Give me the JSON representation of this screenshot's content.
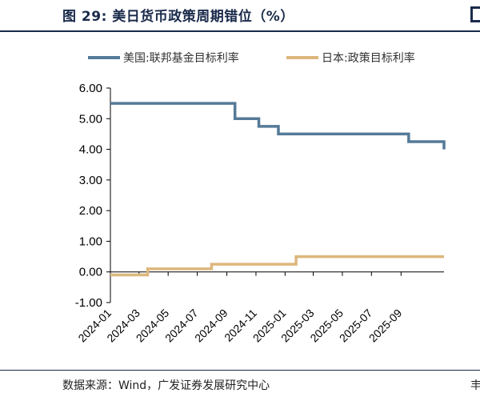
{
  "title": "图 29:  美日货币政策周期错位（%）",
  "source": "数据来源：Wind，广发证券发展研究中心",
  "source_right": "丰",
  "colors": {
    "us": "#557a97",
    "jp": "#ddb77d",
    "axis": "#000000",
    "title": "#1a2a4a"
  },
  "chart_data": {
    "type": "line",
    "title": "美日货币政策周期错位（%）",
    "xlabel": "",
    "ylabel": "",
    "ylim": [
      -1.0,
      6.0
    ],
    "yticks": [
      "6.00",
      "5.00",
      "4.00",
      "3.00",
      "2.00",
      "1.00",
      "0.00",
      "-1.00"
    ],
    "xticks": [
      "2024-01",
      "2024-03",
      "2024-05",
      "2024-07",
      "2024-09",
      "2024-11",
      "2025-01",
      "2025-03",
      "2025-05",
      "2025-07",
      "2025-09"
    ],
    "xrange": [
      "2024-01-01",
      "2025-11-30"
    ],
    "grid": false,
    "legend_position": "top",
    "series": [
      {
        "name": "美国:联邦基金目标利率",
        "step": true,
        "points": [
          [
            "2024-01-01",
            5.5
          ],
          [
            "2024-09-18",
            5.0
          ],
          [
            "2024-11-07",
            4.75
          ],
          [
            "2024-12-18",
            4.5
          ],
          [
            "2025-09-17",
            4.25
          ],
          [
            "2025-11-30",
            4.0
          ]
        ]
      },
      {
        "name": "日本:政策目标利率",
        "step": true,
        "points": [
          [
            "2024-01-01",
            -0.1
          ],
          [
            "2024-03-19",
            0.1
          ],
          [
            "2024-07-31",
            0.25
          ],
          [
            "2025-01-24",
            0.5
          ],
          [
            "2025-11-30",
            0.5
          ]
        ]
      }
    ]
  }
}
